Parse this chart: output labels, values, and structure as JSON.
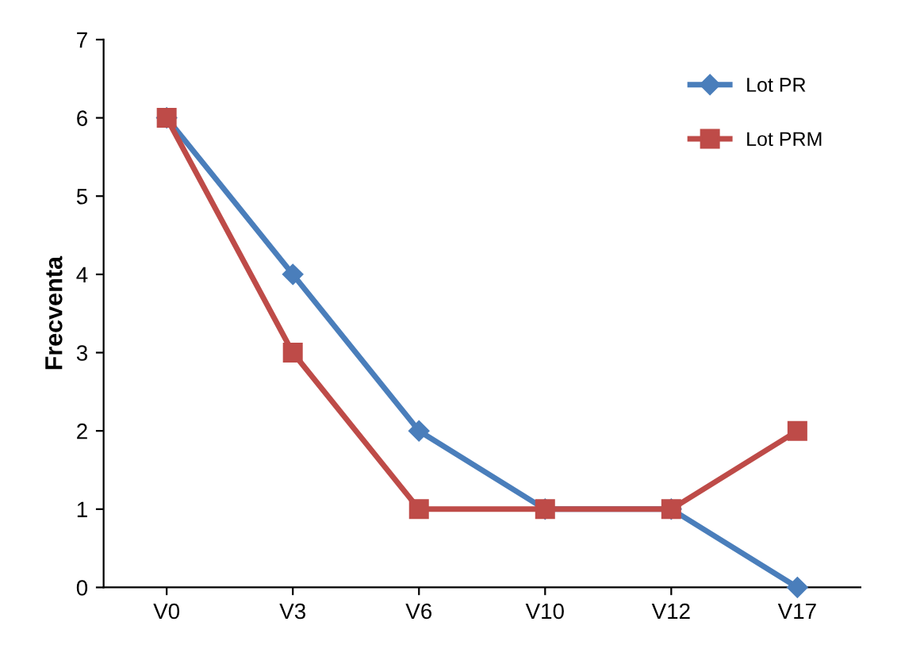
{
  "chart_data": {
    "type": "line",
    "ylabel": "Frecventa",
    "categories": [
      "V0",
      "V3",
      "V6",
      "V10",
      "V12",
      "V17"
    ],
    "series": [
      {
        "name": "Lot PR",
        "color": "#4a7ebb",
        "marker": "diamond",
        "values": [
          6,
          4,
          2,
          1,
          1,
          0
        ]
      },
      {
        "name": "Lot PRM",
        "color": "#be4b48",
        "marker": "square",
        "values": [
          6,
          3,
          1,
          1,
          1,
          2
        ]
      }
    ],
    "ylim": [
      0,
      7
    ],
    "yticks": [
      0,
      1,
      2,
      3,
      4,
      5,
      6,
      7
    ],
    "grid": false,
    "legend": "top right",
    "line_style": "solid"
  }
}
